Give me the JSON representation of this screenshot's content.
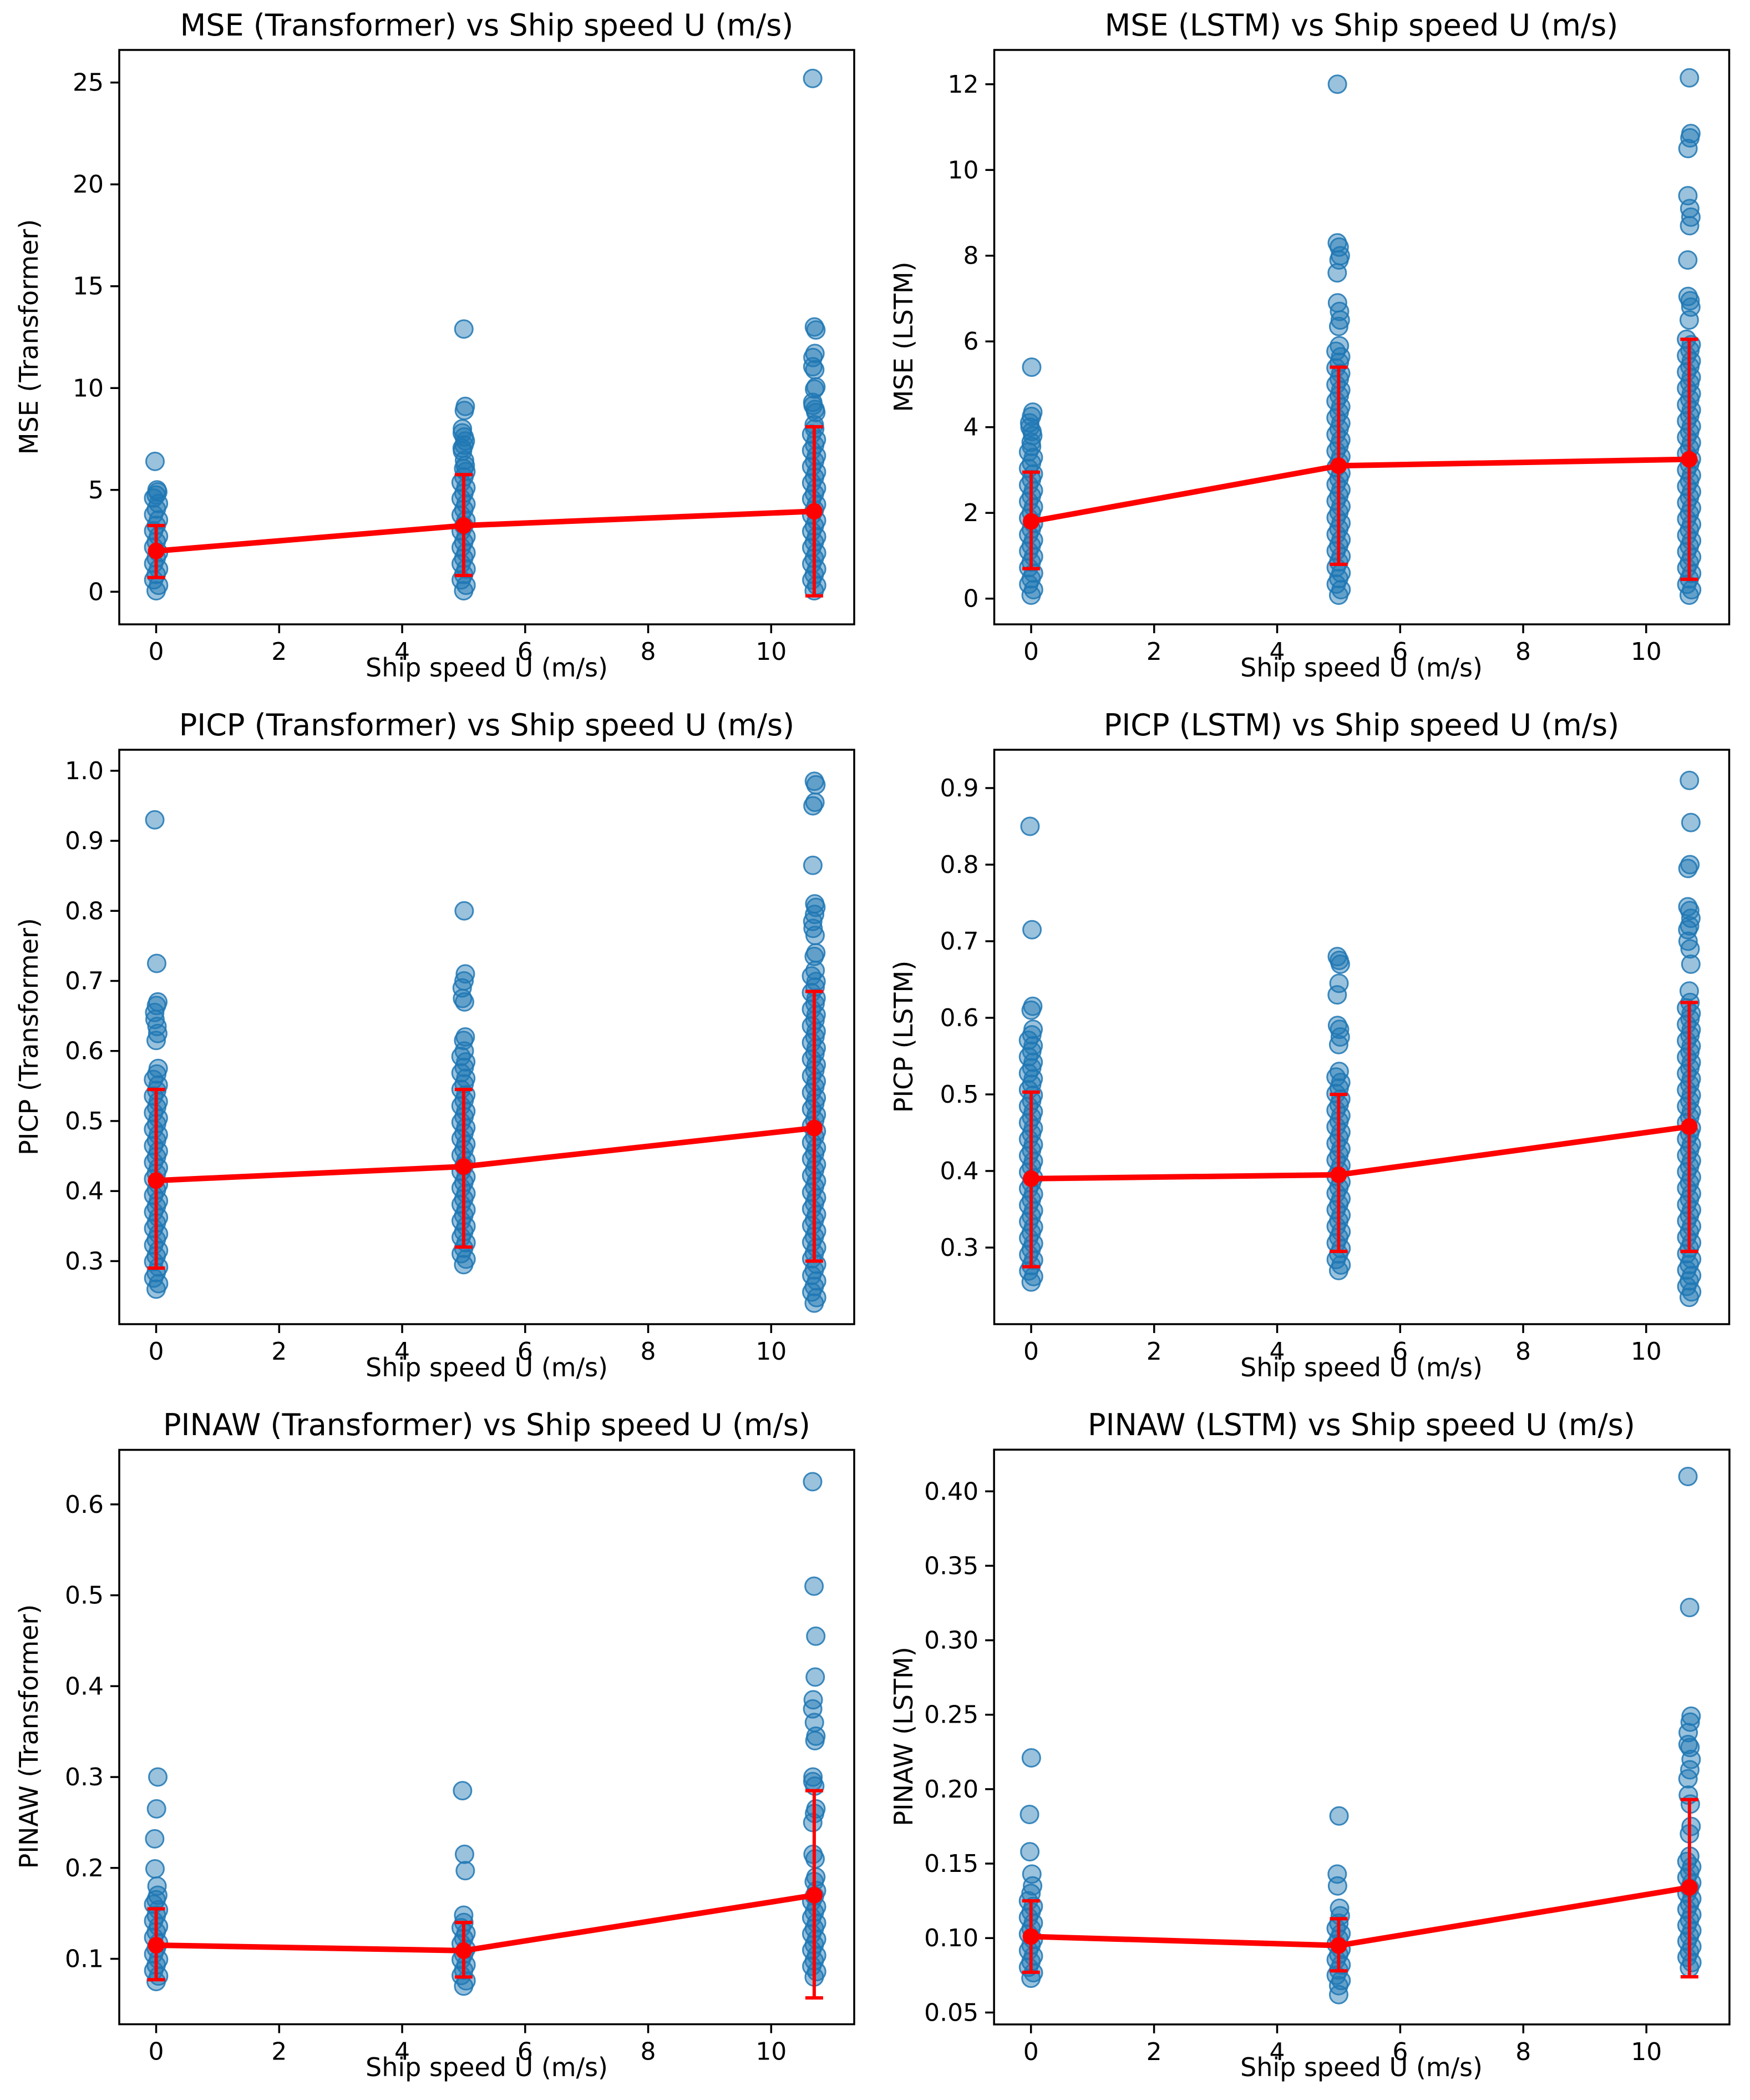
{
  "figure": {
    "kind": "2x3 grid of matplotlib-style scatter plots with mean trend line and std error bars",
    "background": "#ffffff",
    "point_color": "#1f77b4",
    "mean_line_color": "#ff0000",
    "shared_xlabel": "Ship speed U (m/s)"
  },
  "chart_data": [
    {
      "type": "scatter",
      "title": "MSE (Transformer) vs Ship speed U (m/s)",
      "ylabel": "MSE (Transformer)",
      "xlabel": "Ship speed U (m/s)",
      "xlim": [
        -0.6,
        11.35
      ],
      "ylim": [
        -1.6,
        26.6
      ],
      "xticks": [
        0,
        2,
        4,
        6,
        8,
        10
      ],
      "xtick_labels": [
        "0",
        "2",
        "4",
        "6",
        "8",
        "10"
      ],
      "yticks": [
        0,
        5,
        10,
        15,
        20,
        25
      ],
      "ytick_labels": [
        "0",
        "5",
        "10",
        "15",
        "20",
        "25"
      ],
      "grid": false,
      "legend": null,
      "clusters": [
        {
          "x": 0,
          "band": [
            0.05,
            4.6
          ],
          "points": [
            4.75,
            4.9,
            5.0,
            6.4
          ]
        },
        {
          "x": 5,
          "band": [
            0.05,
            5.9
          ],
          "points": [
            6.05,
            6.2,
            6.45,
            6.9,
            7.05,
            7.2,
            7.4,
            7.6,
            7.8,
            8.0,
            8.9,
            9.1,
            12.9
          ]
        },
        {
          "x": 10.7,
          "band": [
            0.05,
            8.0
          ],
          "points": [
            8.2,
            8.8,
            8.95,
            9.15,
            9.3,
            9.95,
            10.05,
            10.9,
            11.05,
            11.5,
            11.7,
            12.85,
            13.0,
            25.2
          ]
        }
      ],
      "mean_line": {
        "x": [
          0,
          5,
          10.7
        ],
        "mean": [
          2.0,
          3.25,
          3.95
        ],
        "err_low": [
          0.7,
          0.8,
          -0.2
        ],
        "err_high": [
          3.25,
          5.75,
          8.1
        ]
      }
    },
    {
      "type": "scatter",
      "title": "MSE (LSTM) vs Ship speed U (m/s)",
      "ylabel": "MSE (LSTM)",
      "xlabel": "Ship speed U (m/s)",
      "xlim": [
        -0.6,
        11.35
      ],
      "ylim": [
        -0.6,
        12.8
      ],
      "xticks": [
        0,
        2,
        4,
        6,
        8,
        10
      ],
      "xtick_labels": [
        "0",
        "2",
        "4",
        "6",
        "8",
        "10"
      ],
      "yticks": [
        0,
        2,
        4,
        6,
        8,
        10,
        12
      ],
      "ytick_labels": [
        "0",
        "2",
        "4",
        "6",
        "8",
        "10",
        "12"
      ],
      "grid": false,
      "legend": null,
      "clusters": [
        {
          "x": 0,
          "band": [
            0.08,
            3.55
          ],
          "points": [
            3.65,
            3.8,
            3.9,
            4.0,
            4.1,
            4.25,
            4.35,
            5.4
          ]
        },
        {
          "x": 5,
          "band": [
            0.08,
            5.9
          ],
          "points": [
            6.35,
            6.5,
            6.7,
            6.9,
            7.6,
            7.9,
            8.0,
            8.2,
            8.3,
            12.0
          ]
        },
        {
          "x": 10.7,
          "band": [
            0.08,
            6.05
          ],
          "points": [
            6.5,
            6.8,
            6.95,
            7.05,
            7.9,
            8.7,
            8.9,
            9.1,
            9.4,
            10.5,
            10.75,
            10.85,
            12.15
          ]
        }
      ],
      "mean_line": {
        "x": [
          0,
          5,
          10.7
        ],
        "mean": [
          1.8,
          3.1,
          3.25
        ],
        "err_low": [
          0.7,
          0.8,
          0.45
        ],
        "err_high": [
          2.95,
          5.4,
          6.05
        ]
      }
    },
    {
      "type": "scatter",
      "title": "PICP (Transformer) vs Ship speed U (m/s)",
      "ylabel": "PICP (Transformer)",
      "xlabel": "Ship speed U (m/s)",
      "xlim": [
        -0.6,
        11.35
      ],
      "ylim": [
        0.21,
        1.03
      ],
      "xticks": [
        0,
        2,
        4,
        6,
        8,
        10
      ],
      "xtick_labels": [
        "0",
        "2",
        "4",
        "6",
        "8",
        "10"
      ],
      "yticks": [
        0.3,
        0.4,
        0.5,
        0.6,
        0.7,
        0.8,
        0.9,
        1.0
      ],
      "ytick_labels": [
        "0.3",
        "0.4",
        "0.5",
        "0.6",
        "0.7",
        "0.8",
        "0.9",
        "1.0"
      ],
      "grid": false,
      "legend": null,
      "clusters": [
        {
          "x": 0,
          "band": [
            0.26,
            0.575
          ],
          "points": [
            0.615,
            0.625,
            0.635,
            0.645,
            0.655,
            0.665,
            0.67,
            0.725,
            0.93
          ]
        },
        {
          "x": 5,
          "band": [
            0.295,
            0.6
          ],
          "points": [
            0.615,
            0.62,
            0.67,
            0.675,
            0.69,
            0.7,
            0.71,
            0.8
          ]
        },
        {
          "x": 10.7,
          "band": [
            0.24,
            0.715
          ],
          "points": [
            0.735,
            0.74,
            0.765,
            0.775,
            0.785,
            0.795,
            0.805,
            0.81,
            0.865,
            0.95,
            0.955,
            0.98,
            0.985
          ]
        }
      ],
      "mean_line": {
        "x": [
          0,
          5,
          10.7
        ],
        "mean": [
          0.415,
          0.435,
          0.49
        ],
        "err_low": [
          0.29,
          0.32,
          0.3
        ],
        "err_high": [
          0.545,
          0.545,
          0.685
        ]
      }
    },
    {
      "type": "scatter",
      "title": "PICP (LSTM) vs Ship speed U (m/s)",
      "ylabel": "PICP (LSTM)",
      "xlabel": "Ship speed U (m/s)",
      "xlim": [
        -0.6,
        11.35
      ],
      "ylim": [
        0.2,
        0.95
      ],
      "xticks": [
        0,
        2,
        4,
        6,
        8,
        10
      ],
      "xtick_labels": [
        "0",
        "2",
        "4",
        "6",
        "8",
        "10"
      ],
      "yticks": [
        0.3,
        0.4,
        0.5,
        0.6,
        0.7,
        0.8,
        0.9
      ],
      "ytick_labels": [
        "0.3",
        "0.4",
        "0.5",
        "0.6",
        "0.7",
        "0.8",
        "0.9"
      ],
      "grid": false,
      "legend": null,
      "clusters": [
        {
          "x": 0,
          "band": [
            0.255,
            0.585
          ],
          "points": [
            0.61,
            0.615,
            0.715,
            0.85
          ]
        },
        {
          "x": 5,
          "band": [
            0.27,
            0.53
          ],
          "points": [
            0.565,
            0.575,
            0.585,
            0.59,
            0.63,
            0.645,
            0.67,
            0.675,
            0.68
          ]
        },
        {
          "x": 10.7,
          "band": [
            0.235,
            0.62
          ],
          "points": [
            0.635,
            0.67,
            0.69,
            0.7,
            0.715,
            0.72,
            0.73,
            0.74,
            0.745,
            0.795,
            0.8,
            0.855,
            0.91
          ]
        }
      ],
      "mean_line": {
        "x": [
          0,
          5,
          10.7
        ],
        "mean": [
          0.39,
          0.395,
          0.458
        ],
        "err_low": [
          0.275,
          0.295,
          0.295
        ],
        "err_high": [
          0.503,
          0.5,
          0.62
        ]
      }
    },
    {
      "type": "scatter",
      "title": "PINAW (Transformer) vs Ship speed U (m/s)",
      "ylabel": "PINAW (Transformer)",
      "xlabel": "Ship speed U (m/s)",
      "xlim": [
        -0.6,
        11.35
      ],
      "ylim": [
        0.028,
        0.66
      ],
      "xticks": [
        0,
        2,
        4,
        6,
        8,
        10
      ],
      "xtick_labels": [
        "0",
        "2",
        "4",
        "6",
        "8",
        "10"
      ],
      "yticks": [
        0.1,
        0.2,
        0.3,
        0.4,
        0.5,
        0.6
      ],
      "ytick_labels": [
        "0.1",
        "0.2",
        "0.3",
        "0.4",
        "0.5",
        "0.6"
      ],
      "grid": false,
      "legend": null,
      "clusters": [
        {
          "x": 0,
          "band": [
            0.075,
            0.16
          ],
          "points": [
            0.165,
            0.17,
            0.18,
            0.199,
            0.232,
            0.265,
            0.3
          ]
        },
        {
          "x": 5,
          "band": [
            0.07,
            0.14
          ],
          "points": [
            0.148,
            0.197,
            0.215,
            0.285
          ]
        },
        {
          "x": 10.7,
          "band": [
            0.08,
            0.175
          ],
          "points": [
            0.185,
            0.19,
            0.21,
            0.215,
            0.25,
            0.26,
            0.265,
            0.29,
            0.295,
            0.3,
            0.34,
            0.345,
            0.36,
            0.375,
            0.385,
            0.41,
            0.455,
            0.51,
            0.625
          ]
        }
      ],
      "mean_line": {
        "x": [
          0,
          5,
          10.7
        ],
        "mean": [
          0.115,
          0.109,
          0.17
        ],
        "err_low": [
          0.077,
          0.08,
          0.057
        ],
        "err_high": [
          0.155,
          0.14,
          0.285
        ]
      }
    },
    {
      "type": "scatter",
      "title": "PINAW (LSTM) vs Ship speed U (m/s)",
      "ylabel": "PINAW (LSTM)",
      "xlabel": "Ship speed U (m/s)",
      "xlim": [
        -0.6,
        11.35
      ],
      "ylim": [
        0.042,
        0.428
      ],
      "xticks": [
        0,
        2,
        4,
        6,
        8,
        10
      ],
      "xtick_labels": [
        "0",
        "2",
        "4",
        "6",
        "8",
        "10"
      ],
      "yticks": [
        0.05,
        0.1,
        0.15,
        0.2,
        0.25,
        0.3,
        0.35,
        0.4
      ],
      "ytick_labels": [
        "0.05",
        "0.10",
        "0.15",
        "0.20",
        "0.25",
        "0.30",
        "0.35",
        "0.40"
      ],
      "grid": false,
      "legend": null,
      "clusters": [
        {
          "x": 0,
          "band": [
            0.073,
            0.125
          ],
          "points": [
            0.13,
            0.135,
            0.143,
            0.158,
            0.183,
            0.221
          ]
        },
        {
          "x": 5,
          "band": [
            0.068,
            0.11
          ],
          "points": [
            0.062,
            0.115,
            0.12,
            0.135,
            0.143,
            0.182
          ]
        },
        {
          "x": 10.7,
          "band": [
            0.08,
            0.155
          ],
          "points": [
            0.17,
            0.175,
            0.19,
            0.196,
            0.207,
            0.213,
            0.22,
            0.228,
            0.23,
            0.238,
            0.245,
            0.249,
            0.322,
            0.41
          ]
        }
      ],
      "mean_line": {
        "x": [
          0,
          5,
          10.7
        ],
        "mean": [
          0.101,
          0.095,
          0.134
        ],
        "err_low": [
          0.077,
          0.078,
          0.074
        ],
        "err_high": [
          0.125,
          0.113,
          0.193
        ]
      }
    }
  ]
}
